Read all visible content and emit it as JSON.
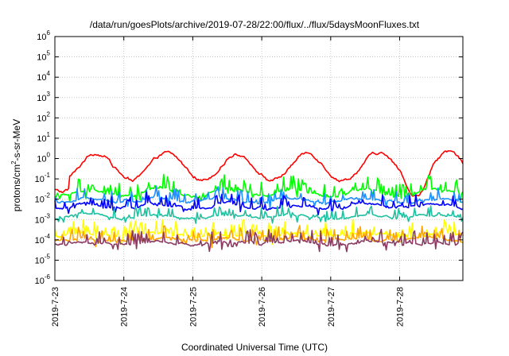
{
  "chart_data": {
    "type": "line",
    "title": "/data/run/goesPlots/archive/2019-07-28/22:00/flux/../flux/5daysMoonFluxes.txt",
    "xlabel": "Coordinated Universal Time (UTC)",
    "ylabel": {
      "prefix": "protons/cm",
      "sup": "2",
      "suffix": "-s-sr-MeV"
    },
    "yscale": "log",
    "ylim": [
      1e-06,
      1000000.0
    ],
    "xlim": [
      "2019-07-23",
      "2019-07-28 22:00"
    ],
    "x_ticks": [
      "2019-7-23",
      "2019-7-24",
      "2019-7-25",
      "2019-7-26",
      "2019-7-27",
      "2019-7-28"
    ],
    "y_ticks": [
      {
        "base": "10",
        "exp": "-6"
      },
      {
        "base": "10",
        "exp": "-5"
      },
      {
        "base": "10",
        "exp": "-4"
      },
      {
        "base": "10",
        "exp": "-3"
      },
      {
        "base": "10",
        "exp": "-2"
      },
      {
        "base": "10",
        "exp": "-1"
      },
      {
        "base": "10",
        "exp": "0"
      },
      {
        "base": "10",
        "exp": "1"
      },
      {
        "base": "10",
        "exp": "2"
      },
      {
        "base": "10",
        "exp": "3"
      },
      {
        "base": "10",
        "exp": "4"
      },
      {
        "base": "10",
        "exp": "5"
      },
      {
        "base": "10",
        "exp": "6"
      }
    ],
    "grid": true,
    "series": [
      {
        "color": "#ff0000",
        "base_log": -0.4,
        "daily_amp": 0.6,
        "noise": 0.12,
        "spikes": 0.1,
        "spike_rate": 0.1
      },
      {
        "color": "#00ff00",
        "base_log": -1.7,
        "daily_amp": 0.15,
        "noise": 0.12,
        "spikes": 0.7,
        "spike_rate": 0.28
      },
      {
        "color": "#1e90ff",
        "base_log": -2.05,
        "daily_amp": 0.1,
        "noise": 0.1,
        "spikes": 0.6,
        "spike_rate": 0.25
      },
      {
        "color": "#0000ff",
        "base_log": -2.35,
        "daily_amp": 0.1,
        "noise": 0.1,
        "spikes": 0.55,
        "spike_rate": 0.25
      },
      {
        "color": "#20c0a0",
        "base_log": -2.85,
        "daily_amp": 0.08,
        "noise": 0.08,
        "spikes": 0.5,
        "spike_rate": 0.22
      },
      {
        "color": "#ffff00",
        "base_log": -3.75,
        "daily_amp": 0.08,
        "noise": 0.12,
        "spikes": 0.7,
        "spike_rate": 0.3
      },
      {
        "color": "#ffa500",
        "base_log": -4.0,
        "daily_amp": 0.06,
        "noise": 0.1,
        "spikes": 0.6,
        "spike_rate": 0.3
      },
      {
        "color": "#8b3a62",
        "base_log": -4.15,
        "daily_amp": 0.05,
        "noise": 0.1,
        "spikes": 0.65,
        "spike_rate": 0.3
      }
    ]
  }
}
